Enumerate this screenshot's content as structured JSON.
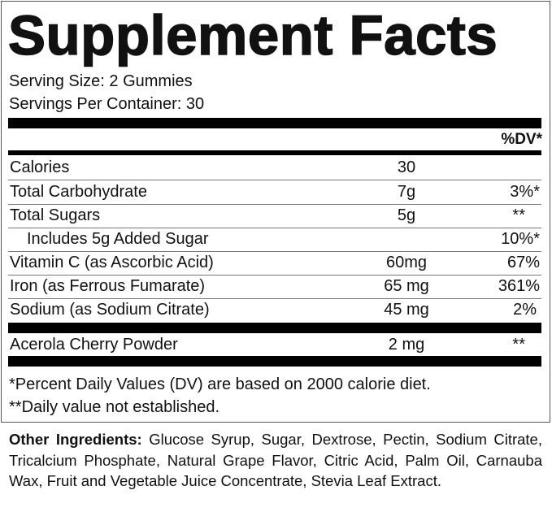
{
  "title": "Supplement Facts",
  "serving_size": "Serving Size: 2 Gummies",
  "servings_per_container": "Servings Per Container: 30",
  "dv_header": "%DV*",
  "rows": [
    {
      "name": "Calories",
      "amount": "30",
      "dv": ""
    },
    {
      "name": "Total Carbohydrate",
      "amount": "7g",
      "dv": "3%*"
    },
    {
      "name": "Total Sugars",
      "amount": "5g",
      "dv": "**"
    },
    {
      "name": "Includes 5g Added Sugar",
      "amount": "",
      "dv": "10%*"
    },
    {
      "name": "Vitamin C (as Ascorbic Acid)",
      "amount": "60mg",
      "dv": "67%"
    },
    {
      "name": "Iron (as Ferrous Fumarate)",
      "amount": "65 mg",
      "dv": "361%"
    },
    {
      "name": "Sodium (as Sodium Citrate)",
      "amount": "45 mg",
      "dv": "2%"
    }
  ],
  "blend_row": {
    "name": "Acerola Cherry Powder",
    "amount": "2 mg",
    "dv": "**"
  },
  "footnotes": [
    "*Percent Daily Values (DV) are based on 2000 calorie diet.",
    "**Daily value not established."
  ],
  "other_ingredients": {
    "label": "Other Ingredients:",
    "text": "Glucose Syrup, Sugar, Dextrose, Pectin, Sodium Citrate, Tricalcium Phosphate, Natural Grape Flavor, Citric Acid, Palm Oil, Carnauba Wax, Fruit and Vegetable Juice Concentrate, Stevia Leaf Extract."
  }
}
